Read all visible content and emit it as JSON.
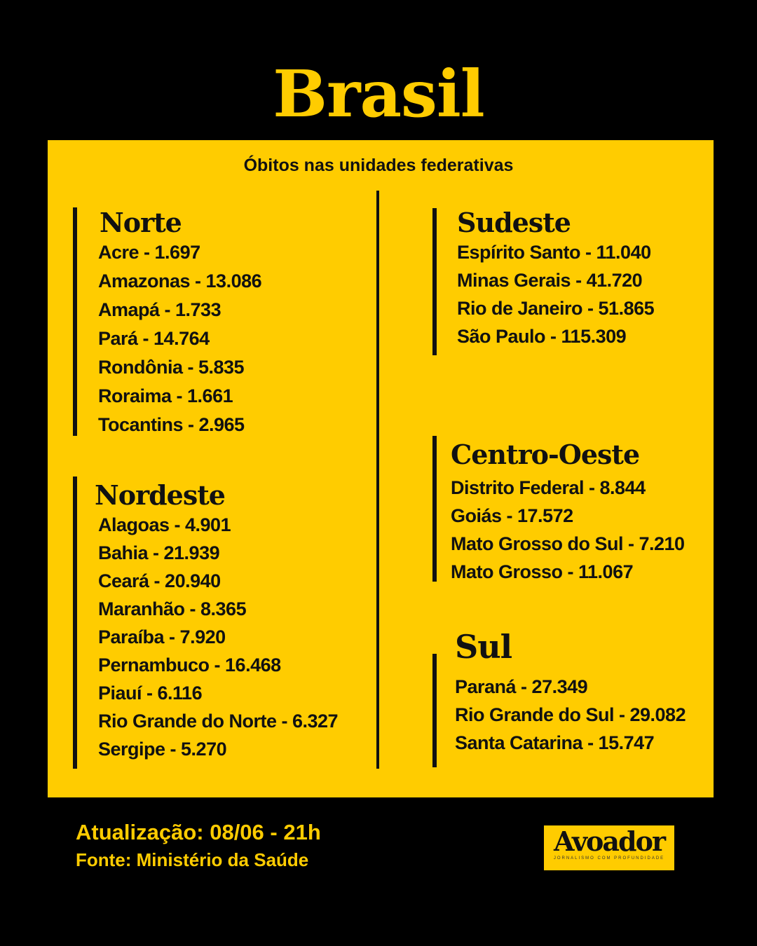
{
  "title": "Brasil",
  "subtitle": "Óbitos nas unidades federativas",
  "regions": {
    "norte": {
      "name": "Norte",
      "items": [
        "Acre - 1.697",
        "Amazonas - 13.086",
        "Amapá - 1.733",
        "Pará - 14.764",
        "Rondônia - 5.835",
        "Roraima - 1.661",
        "Tocantins - 2.965"
      ]
    },
    "nordeste": {
      "name": "Nordeste",
      "items": [
        "Alagoas - 4.901",
        "Bahia - 21.939",
        "Ceará - 20.940",
        "Maranhão - 8.365",
        "Paraíba - 7.920",
        "Pernambuco - 16.468",
        "Piauí - 6.116",
        "Rio Grande do Norte - 6.327",
        "Sergipe - 5.270"
      ]
    },
    "sudeste": {
      "name": "Sudeste",
      "items": [
        "Espírito Santo - 11.040",
        "Minas Gerais - 41.720",
        "Rio de Janeiro - 51.865",
        "São Paulo - 115.309"
      ]
    },
    "centro_oeste": {
      "name": "Centro-Oeste",
      "items": [
        "Distrito Federal - 8.844",
        "Goiás - 17.572",
        "Mato Grosso do Sul - 7.210",
        "Mato Grosso - 11.067"
      ]
    },
    "sul": {
      "name": "Sul",
      "items": [
        "Paraná - 27.349",
        "Rio Grande do Sul - 29.082",
        "Santa Catarina - 15.747"
      ]
    }
  },
  "footer": {
    "update": "Atualização: 08/06 - 21h",
    "source": "Fonte: Ministério da Saúde"
  },
  "logo": {
    "name": "Avoador",
    "tagline": "JORNALISMO COM PROFUNDIDADE"
  },
  "colors": {
    "accent": "#FFCC00",
    "background": "#000000",
    "text": "#111111"
  }
}
